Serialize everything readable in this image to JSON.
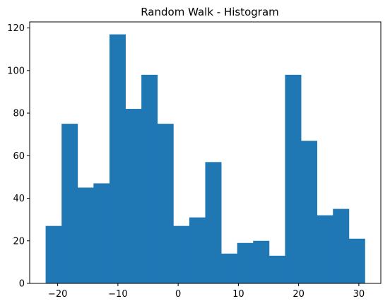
{
  "chart_data": {
    "type": "bar",
    "title": "Random Walk - Histogram",
    "xlabel": "",
    "ylabel": "",
    "bin_edges": [
      -22,
      -19.35,
      -16.7,
      -14.05,
      -11.4,
      -8.75,
      -6.1,
      -3.45,
      -0.8,
      1.85,
      4.5,
      7.15,
      9.8,
      12.45,
      15.1,
      17.75,
      20.4,
      23.05,
      25.7,
      28.35,
      31
    ],
    "values": [
      27,
      75,
      45,
      47,
      117,
      82,
      98,
      75,
      27,
      31,
      57,
      14,
      19,
      20,
      13,
      98,
      67,
      32,
      35,
      21
    ],
    "xlim": [
      -24.65,
      33.65
    ],
    "ylim": [
      0,
      122.85
    ],
    "xticks": [
      -20,
      -10,
      0,
      10,
      20,
      30
    ],
    "yticks": [
      0,
      20,
      40,
      60,
      80,
      100,
      120
    ],
    "xtick_labels": [
      "−20",
      "−10",
      "0",
      "10",
      "20",
      "30"
    ],
    "ytick_labels": [
      "0",
      "20",
      "40",
      "60",
      "80",
      "100",
      "120"
    ],
    "grid": false,
    "bar_color": "#1f77b4"
  }
}
